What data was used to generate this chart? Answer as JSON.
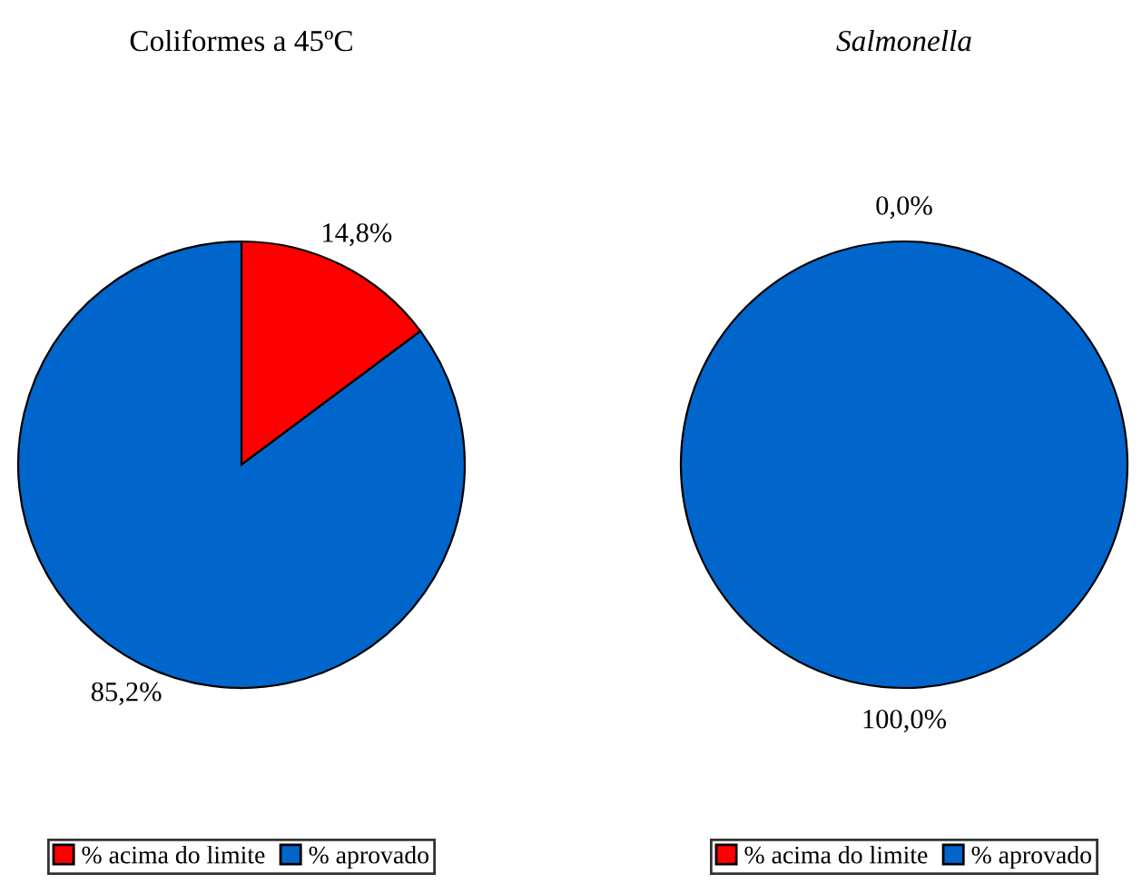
{
  "chart_data": [
    {
      "type": "pie",
      "title": "Coliformes a 45ºC",
      "categories": [
        "% acima do limite",
        "% aprovado"
      ],
      "values": [
        14.8,
        85.2
      ],
      "colors": [
        "#ff0000",
        "#0066cc"
      ],
      "value_labels": [
        "14,8%",
        "85,2%"
      ],
      "legend": "bottom"
    },
    {
      "type": "pie",
      "title": "Salmonella",
      "categories": [
        "% acima do limite",
        "% aprovado"
      ],
      "values": [
        0.0,
        100.0
      ],
      "colors": [
        "#ff0000",
        "#0066cc"
      ],
      "value_labels": [
        "0,0%",
        "100,0%"
      ],
      "legend": "bottom"
    }
  ]
}
